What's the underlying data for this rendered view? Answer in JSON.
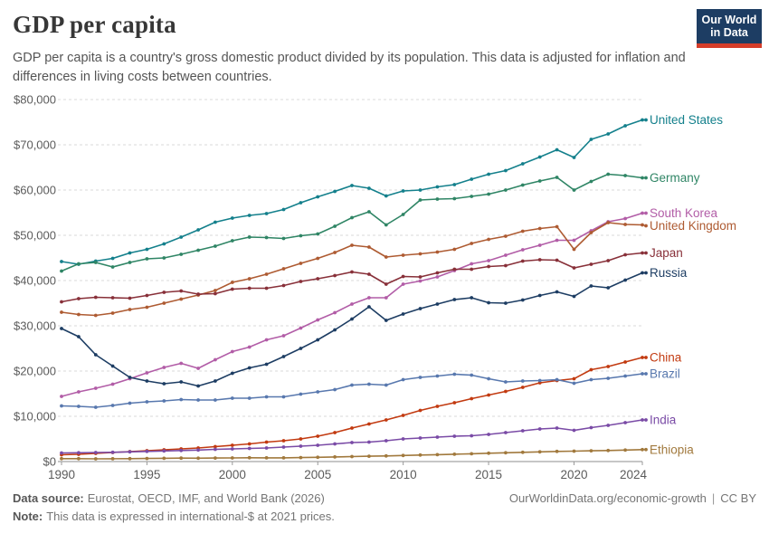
{
  "header": {
    "title": "GDP per capita",
    "subtitle": "GDP per capita is a country's gross domestic product divided by its population. This data is adjusted for inflation and differences in living costs between countries.",
    "logo": {
      "line1": "Our World",
      "line2": "in Data",
      "bg_color": "#1D3D63",
      "accent_color": "#D53D2A"
    }
  },
  "chart_data": {
    "type": "line",
    "title": "GDP per capita",
    "xlabel": "",
    "ylabel": "",
    "start_year": 1990,
    "end_year": 2024,
    "x_ticks": [
      1990,
      1995,
      2000,
      2005,
      2010,
      2015,
      2020,
      2024
    ],
    "y_ticks": [
      0,
      10000,
      20000,
      30000,
      40000,
      50000,
      60000,
      70000,
      80000
    ],
    "ylim": [
      0,
      80000
    ],
    "y_tick_prefix": "$",
    "grid": "dashed-horizontal",
    "legend_position": "right-edge-labels",
    "axis_text_color": "#5b5b5b",
    "gridline_color": "#dadada",
    "axis_line_color": "#8c8c8c",
    "series": [
      {
        "name": "United States",
        "color": "#14808C",
        "values": [
          44200,
          43600,
          44300,
          44900,
          46100,
          46900,
          48100,
          49600,
          51200,
          52900,
          53800,
          54400,
          54800,
          55700,
          57200,
          58500,
          59700,
          61000,
          60400,
          58700,
          59800,
          60000,
          60700,
          61200,
          62400,
          63500,
          64300,
          65800,
          67300,
          68900,
          67200,
          71200,
          72400,
          74200,
          75500
        ]
      },
      {
        "name": "Germany",
        "color": "#2F8565",
        "values": [
          42100,
          43700,
          44000,
          43000,
          44000,
          44800,
          45000,
          45800,
          46700,
          47600,
          48800,
          49600,
          49500,
          49300,
          49900,
          50300,
          52000,
          53900,
          55200,
          52300,
          54600,
          57800,
          58000,
          58100,
          58600,
          59100,
          60000,
          61100,
          62000,
          62800,
          60000,
          61900,
          63500,
          63200,
          62700
        ]
      },
      {
        "name": "South Korea",
        "color": "#B25DA7",
        "values": [
          14400,
          15400,
          16200,
          17100,
          18300,
          19600,
          20800,
          21700,
          20600,
          22500,
          24300,
          25300,
          26900,
          27800,
          29500,
          31300,
          32900,
          34800,
          36200,
          36200,
          39200,
          39900,
          40800,
          42200,
          43700,
          44400,
          45600,
          46800,
          47800,
          48900,
          48900,
          51000,
          53000,
          53700,
          54900
        ]
      },
      {
        "name": "United Kingdom",
        "color": "#AE5B32",
        "values": [
          33000,
          32500,
          32300,
          32800,
          33600,
          34100,
          35000,
          35900,
          36800,
          37800,
          39600,
          40400,
          41400,
          42600,
          43800,
          44900,
          46200,
          47800,
          47400,
          45200,
          45600,
          45900,
          46300,
          46900,
          48200,
          49100,
          49800,
          50900,
          51500,
          51900,
          46900,
          50600,
          52800,
          52400,
          52300
        ]
      },
      {
        "name": "Japan",
        "color": "#883039",
        "values": [
          35300,
          36000,
          36300,
          36200,
          36100,
          36700,
          37400,
          37700,
          37000,
          37100,
          38100,
          38300,
          38300,
          38900,
          39800,
          40400,
          41100,
          41900,
          41400,
          39200,
          40900,
          40800,
          41700,
          42500,
          42500,
          43100,
          43300,
          44300,
          44600,
          44500,
          42800,
          43600,
          44400,
          45700,
          46100
        ]
      },
      {
        "name": "Russia",
        "color": "#1D3D63",
        "values": [
          29400,
          27600,
          23600,
          21100,
          18600,
          17800,
          17200,
          17600,
          16700,
          17800,
          19500,
          20700,
          21500,
          23200,
          25000,
          26900,
          29100,
          31500,
          34200,
          31200,
          32600,
          33800,
          34800,
          35800,
          36200,
          35100,
          35000,
          35700,
          36700,
          37500,
          36500,
          38800,
          38400,
          40100,
          41700
        ]
      },
      {
        "name": "China",
        "color": "#C23A10",
        "values": [
          1500,
          1600,
          1800,
          2000,
          2200,
          2400,
          2600,
          2800,
          3000,
          3300,
          3600,
          3900,
          4300,
          4600,
          5000,
          5600,
          6400,
          7400,
          8300,
          9200,
          10200,
          11300,
          12200,
          13000,
          13900,
          14700,
          15500,
          16400,
          17400,
          17900,
          18300,
          20300,
          21000,
          22000,
          23000
        ]
      },
      {
        "name": "Brazil",
        "color": "#5878AE",
        "values": [
          12300,
          12200,
          12000,
          12400,
          12900,
          13200,
          13400,
          13700,
          13600,
          13600,
          14000,
          14000,
          14300,
          14300,
          14900,
          15400,
          15900,
          16900,
          17100,
          16900,
          18100,
          18600,
          18900,
          19300,
          19100,
          18300,
          17600,
          17800,
          17900,
          18100,
          17300,
          18100,
          18400,
          18900,
          19400
        ]
      },
      {
        "name": "India",
        "color": "#7A4BA6",
        "values": [
          1900,
          1950,
          2000,
          2050,
          2150,
          2250,
          2350,
          2450,
          2550,
          2700,
          2800,
          2900,
          3000,
          3200,
          3400,
          3600,
          3900,
          4200,
          4300,
          4600,
          5000,
          5200,
          5400,
          5600,
          5700,
          6000,
          6400,
          6800,
          7200,
          7400,
          6900,
          7500,
          8000,
          8600,
          9200
        ]
      },
      {
        "name": "Ethiopia",
        "color": "#A1793D",
        "values": [
          650,
          640,
          600,
          620,
          650,
          680,
          730,
          760,
          740,
          770,
          800,
          840,
          830,
          810,
          880,
          950,
          1020,
          1100,
          1180,
          1250,
          1350,
          1450,
          1520,
          1620,
          1720,
          1850,
          1950,
          2050,
          2150,
          2250,
          2300,
          2380,
          2450,
          2550,
          2650
        ]
      }
    ]
  },
  "footer": {
    "source_label": "Data source:",
    "source_text": "Eurostat, OECD, IMF, and World Bank (2026)",
    "link": "OurWorldinData.org/economic-growth",
    "separator": "|",
    "license": "CC BY",
    "note_label": "Note:",
    "note_text": "This data is expressed in international-$ at 2021 prices."
  }
}
